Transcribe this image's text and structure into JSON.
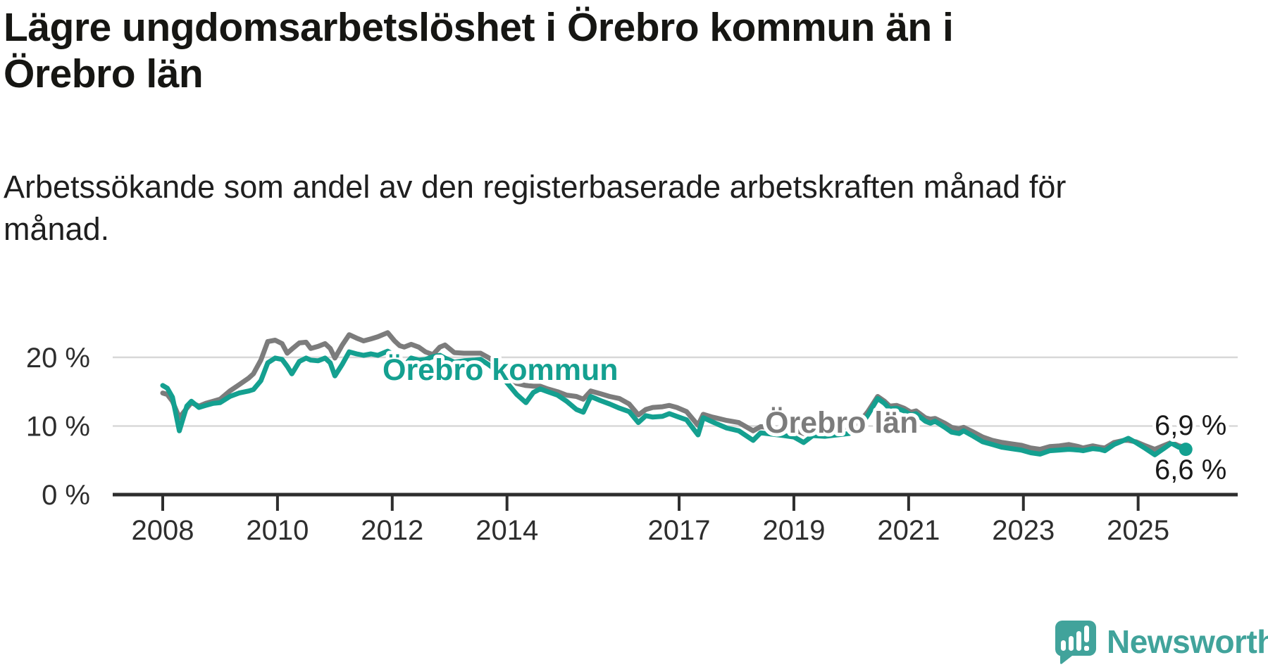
{
  "title": "Lägre ungdomsarbetslöshet i Örebro kommun än i Örebro län",
  "subtitle": "Arbetssökande som andel av den registerbaserade arbetskraften månad för månad.",
  "branding": {
    "wordmark": "Newsworthy"
  },
  "colors": {
    "kommun_line": "#14a090",
    "lan_line": "#7c7c7c",
    "gridline": "#d8d8d8",
    "axis": "#2e2e2e",
    "title_text": "#161613",
    "end_label_text": "#1a1a1a",
    "logo_teal": "#41a39b"
  },
  "chart_data": {
    "type": "line",
    "title": "Lägre ungdomsarbetslöshet i Örebro kommun än i Örebro län",
    "subtitle": "Arbetssökande som andel av den registerbaserade arbetskraften månad för månad.",
    "unit": "%",
    "grid": "horizontal",
    "legend_position": "inline-labels",
    "x_axis": {
      "ticks": [
        2008,
        2010,
        2012,
        2014,
        2017,
        2019,
        2021,
        2023,
        2025
      ],
      "range": [
        2008,
        2025.9
      ]
    },
    "y_axis": {
      "range": [
        0,
        24
      ],
      "ticks": [
        {
          "value": 0,
          "label": "0 %"
        },
        {
          "value": 10,
          "label": "10 %"
        },
        {
          "value": 20,
          "label": "20 %"
        }
      ]
    },
    "x": [
      2008.0,
      2008.08,
      2008.17,
      2008.29,
      2008.42,
      2008.5,
      2008.63,
      2008.75,
      2008.88,
      2009.0,
      2009.17,
      2009.33,
      2009.5,
      2009.58,
      2009.71,
      2009.83,
      2009.96,
      2010.08,
      2010.17,
      2010.25,
      2010.38,
      2010.5,
      2010.58,
      2010.71,
      2010.83,
      2010.92,
      2011.0,
      2011.13,
      2011.25,
      2011.38,
      2011.5,
      2011.63,
      2011.75,
      2011.92,
      2012.04,
      2012.13,
      2012.21,
      2012.33,
      2012.46,
      2012.58,
      2012.71,
      2012.83,
      2012.92,
      2013.08,
      2013.25,
      2013.42,
      2013.54,
      2013.67,
      2013.83,
      2014.0,
      2014.17,
      2014.33,
      2014.46,
      2014.58,
      2014.71,
      2014.88,
      2015.04,
      2015.21,
      2015.33,
      2015.46,
      2015.63,
      2015.79,
      2015.96,
      2016.13,
      2016.29,
      2016.42,
      2016.54,
      2016.71,
      2016.83,
      2016.96,
      2017.13,
      2017.33,
      2017.42,
      2017.58,
      2017.83,
      2018.04,
      2018.29,
      2018.42,
      2018.63,
      2018.83,
      2019.0,
      2019.17,
      2019.33,
      2019.54,
      2019.75,
      2019.96,
      2020.13,
      2020.29,
      2020.46,
      2020.58,
      2020.67,
      2020.79,
      2020.92,
      2021.04,
      2021.13,
      2021.29,
      2021.38,
      2021.46,
      2021.63,
      2021.75,
      2021.88,
      2021.96,
      2022.13,
      2022.29,
      2022.46,
      2022.63,
      2022.79,
      2022.96,
      2023.13,
      2023.29,
      2023.46,
      2023.63,
      2023.79,
      2023.96,
      2024.04,
      2024.21,
      2024.33,
      2024.42,
      2024.58,
      2024.75,
      2024.83,
      2024.96,
      2025.13,
      2025.29,
      2025.46,
      2025.58,
      2025.71,
      2025.83
    ],
    "series": [
      {
        "name": "Örebro län",
        "color": "#7c7c7c",
        "end_label": "6,9 %",
        "values": [
          14.8,
          14.6,
          13.6,
          11.2,
          12.6,
          13.4,
          12.9,
          13.3,
          13.6,
          13.9,
          15.1,
          16.0,
          17.0,
          17.6,
          19.6,
          22.3,
          22.5,
          22.0,
          20.6,
          21.2,
          22.1,
          22.2,
          21.3,
          21.6,
          22.0,
          21.3,
          19.9,
          21.8,
          23.3,
          22.8,
          22.4,
          22.7,
          23.0,
          23.6,
          22.4,
          21.7,
          21.5,
          21.9,
          21.5,
          20.8,
          20.4,
          21.5,
          21.8,
          20.7,
          20.6,
          20.6,
          20.6,
          20.0,
          19.1,
          17.6,
          16.2,
          15.9,
          15.8,
          15.8,
          15.4,
          15.0,
          14.5,
          14.3,
          13.9,
          15.1,
          14.7,
          14.3,
          14.0,
          13.2,
          11.6,
          12.4,
          12.7,
          12.8,
          13.0,
          12.7,
          12.1,
          10.1,
          11.7,
          11.3,
          10.8,
          10.5,
          9.3,
          9.9,
          9.7,
          9.6,
          9.5,
          8.9,
          9.6,
          9.5,
          9.7,
          9.9,
          10.4,
          12.1,
          14.3,
          13.6,
          12.9,
          13.0,
          12.6,
          12.0,
          12.2,
          11.2,
          11.0,
          11.1,
          10.4,
          9.8,
          9.6,
          9.8,
          9.1,
          8.4,
          7.9,
          7.6,
          7.4,
          7.2,
          6.8,
          6.6,
          7.0,
          7.1,
          7.3,
          7.0,
          6.8,
          7.1,
          6.9,
          6.8,
          7.6,
          7.9,
          7.9,
          7.7,
          7.1,
          6.6,
          7.2,
          7.6,
          7.1,
          6.9
        ]
      },
      {
        "name": "Örebro kommun",
        "color": "#14a090",
        "end_label": "6,6 %",
        "values": [
          15.9,
          15.5,
          14.2,
          9.3,
          12.9,
          13.6,
          12.7,
          13.0,
          13.3,
          13.4,
          14.3,
          14.8,
          15.1,
          15.3,
          16.6,
          19.2,
          19.9,
          19.7,
          18.7,
          17.6,
          19.4,
          19.9,
          19.6,
          19.5,
          19.9,
          19.2,
          17.3,
          19.0,
          20.8,
          20.5,
          20.3,
          20.5,
          20.3,
          20.9,
          20.3,
          19.1,
          18.8,
          19.9,
          19.6,
          19.7,
          20.1,
          20.3,
          19.9,
          19.3,
          19.5,
          19.6,
          19.7,
          19.0,
          18.0,
          16.3,
          14.6,
          13.4,
          14.9,
          15.4,
          15.0,
          14.5,
          13.6,
          12.4,
          12.0,
          14.3,
          13.7,
          13.2,
          12.6,
          12.1,
          10.5,
          11.5,
          11.3,
          11.4,
          11.8,
          11.4,
          10.9,
          8.7,
          11.2,
          10.6,
          9.7,
          9.3,
          7.9,
          9.0,
          8.8,
          8.6,
          8.4,
          7.6,
          8.6,
          8.5,
          8.7,
          8.9,
          9.6,
          11.6,
          14.0,
          13.3,
          12.5,
          12.6,
          12.2,
          11.6,
          11.8,
          10.7,
          10.4,
          10.7,
          9.8,
          9.1,
          8.9,
          9.3,
          8.5,
          7.7,
          7.3,
          6.9,
          6.7,
          6.5,
          6.1,
          5.9,
          6.4,
          6.5,
          6.6,
          6.5,
          6.4,
          6.7,
          6.6,
          6.4,
          7.3,
          7.9,
          8.2,
          7.6,
          6.7,
          5.8,
          6.8,
          7.5,
          6.9,
          6.6
        ]
      }
    ]
  }
}
